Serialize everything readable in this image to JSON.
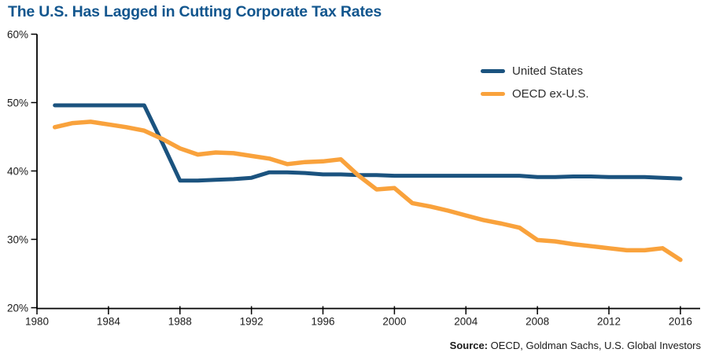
{
  "title": "The U.S. Has Lagged in Cutting Corporate Tax Rates",
  "colors": {
    "title": "#12568E",
    "us_line": "#1B537F",
    "oecd_line": "#F9A23C",
    "axis": "#000000"
  },
  "legend": [
    {
      "name": "United States"
    },
    {
      "name": "OECD ex-U.S."
    }
  ],
  "source": {
    "label": "Source:",
    "text": " OECD, Goldman Sachs, U.S. Global Investors"
  },
  "chart_data": {
    "type": "line",
    "title": "The U.S. Has Lagged in Cutting Corporate Tax Rates",
    "xlabel": "",
    "ylabel": "",
    "xlim": [
      1980,
      2017
    ],
    "ylim": [
      20,
      60
    ],
    "grid": false,
    "legend_position": "upper-right",
    "x": [
      1981,
      1982,
      1983,
      1984,
      1985,
      1986,
      1987,
      1988,
      1989,
      1990,
      1991,
      1992,
      1993,
      1994,
      1995,
      1996,
      1997,
      1998,
      1999,
      2000,
      2001,
      2002,
      2003,
      2004,
      2005,
      2006,
      2007,
      2008,
      2009,
      2010,
      2011,
      2012,
      2013,
      2014,
      2015,
      2016
    ],
    "series": [
      {
        "name": "United States",
        "color": "#1B537F",
        "values": [
          49.6,
          49.6,
          49.6,
          49.6,
          49.6,
          49.6,
          44.2,
          38.6,
          38.6,
          38.7,
          38.8,
          39.0,
          39.8,
          39.8,
          39.7,
          39.5,
          39.5,
          39.4,
          39.4,
          39.3,
          39.3,
          39.3,
          39.3,
          39.3,
          39.3,
          39.3,
          39.3,
          39.1,
          39.1,
          39.2,
          39.2,
          39.1,
          39.1,
          39.1,
          39.0,
          38.9
        ]
      },
      {
        "name": "OECD ex-U.S.",
        "color": "#F9A23C",
        "values": [
          46.4,
          47.0,
          47.2,
          46.8,
          46.4,
          45.9,
          44.7,
          43.3,
          42.4,
          42.7,
          42.6,
          42.2,
          41.8,
          41.0,
          41.3,
          41.4,
          41.7,
          39.3,
          37.3,
          37.5,
          35.3,
          34.8,
          34.2,
          33.5,
          32.8,
          32.3,
          31.7,
          29.9,
          29.7,
          29.3,
          29.0,
          28.7,
          28.4,
          28.4,
          28.7,
          27.0
        ]
      }
    ],
    "x_ticks": [
      {
        "v": 1980,
        "label": "1980"
      },
      {
        "v": 1984,
        "label": "1984"
      },
      {
        "v": 1988,
        "label": "1988"
      },
      {
        "v": 1992,
        "label": "1992"
      },
      {
        "v": 1996,
        "label": "1996"
      },
      {
        "v": 2000,
        "label": "2000"
      },
      {
        "v": 2004,
        "label": "2004"
      },
      {
        "v": 2008,
        "label": "2008"
      },
      {
        "v": 2012,
        "label": "2012"
      },
      {
        "v": 2016,
        "label": "2016"
      }
    ],
    "y_ticks": [
      {
        "v": 60,
        "label": "60%"
      },
      {
        "v": 50,
        "label": "50%"
      },
      {
        "v": 40,
        "label": "40%"
      },
      {
        "v": 30,
        "label": "30%"
      },
      {
        "v": 20,
        "label": "20%"
      }
    ]
  }
}
